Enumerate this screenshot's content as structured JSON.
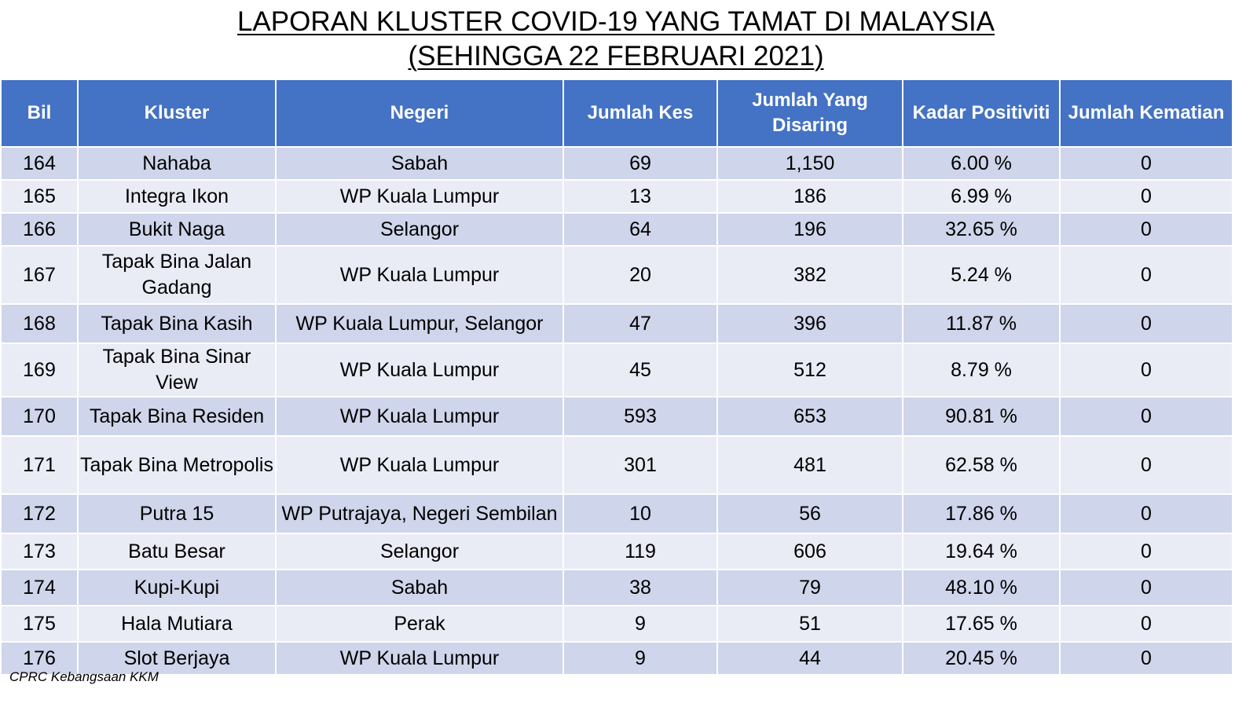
{
  "title": {
    "line1": "LAPORAN KLUSTER COVID-19 YANG TAMAT DI MALAYSIA",
    "line2": "(SEHINGGA  22 FEBRUARI 2021)"
  },
  "table": {
    "headers": [
      "Bil",
      "Kluster",
      "Negeri",
      "Jumlah Kes",
      "Jumlah Yang Disaring",
      "Kadar Positiviti",
      "Jumlah Kematian"
    ],
    "rows": [
      [
        "164",
        "Nahaba",
        "Sabah",
        "69",
        "1,150",
        "6.00 %",
        "0"
      ],
      [
        "165",
        "Integra Ikon",
        "WP Kuala Lumpur",
        "13",
        "186",
        "6.99 %",
        "0"
      ],
      [
        "166",
        "Bukit Naga",
        "Selangor",
        "64",
        "196",
        "32.65 %",
        "0"
      ],
      [
        "167",
        "Tapak Bina Jalan Gadang",
        "WP Kuala Lumpur",
        "20",
        "382",
        "5.24 %",
        "0"
      ],
      [
        "168",
        "Tapak Bina Kasih",
        "WP Kuala Lumpur, Selangor",
        "47",
        "396",
        "11.87 %",
        "0"
      ],
      [
        "169",
        "Tapak Bina Sinar View",
        "WP Kuala Lumpur",
        "45",
        "512",
        "8.79 %",
        "0"
      ],
      [
        "170",
        "Tapak Bina Residen",
        "WP Kuala Lumpur",
        "593",
        "653",
        "90.81 %",
        "0"
      ],
      [
        "171",
        "Tapak Bina Metropolis",
        "WP Kuala Lumpur",
        "301",
        "481",
        "62.58 %",
        "0"
      ],
      [
        "172",
        "Putra 15",
        "WP Putrajaya, Negeri Sembilan",
        "10",
        "56",
        "17.86 %",
        "0"
      ],
      [
        "173",
        "Batu Besar",
        "Selangor",
        "119",
        "606",
        "19.64 %",
        "0"
      ],
      [
        "174",
        "Kupi-Kupi",
        "Sabah",
        "38",
        "79",
        "48.10 %",
        "0"
      ],
      [
        "175",
        "Hala Mutiara",
        "Perak",
        "9",
        "51",
        "17.65 %",
        "0"
      ],
      [
        "176",
        "Slot Berjaya",
        "WP Kuala Lumpur",
        "9",
        "44",
        "20.45 %",
        "0"
      ]
    ]
  },
  "footer": {
    "source": "CPRC Kebangsaan KKM"
  },
  "colors": {
    "header_bg": "#4472c4",
    "row_dark": "#cfd5ea",
    "row_light": "#e9ebf5"
  }
}
